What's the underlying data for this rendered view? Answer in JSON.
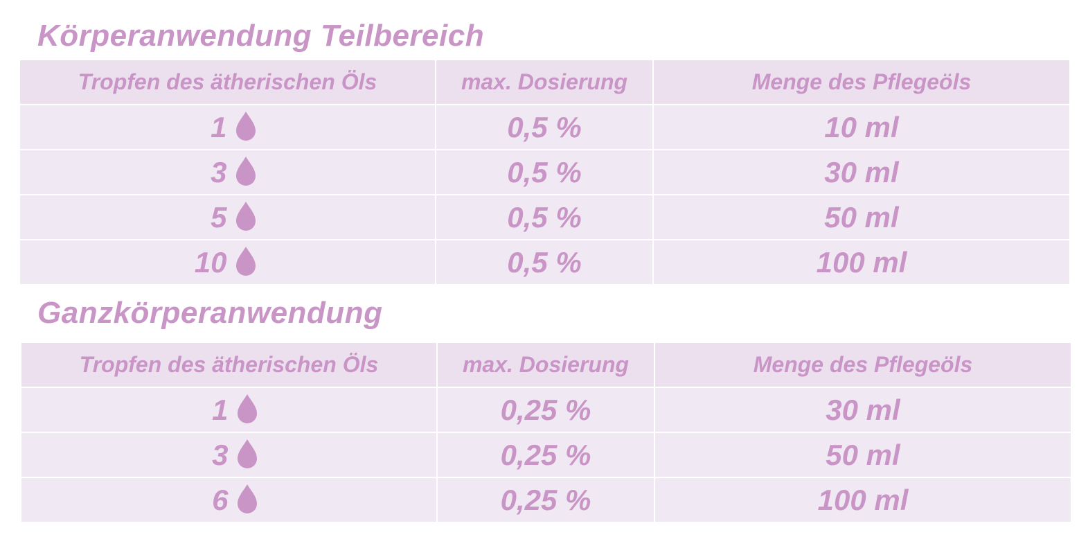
{
  "colors": {
    "accent": "#c995c6",
    "header_bg": "#ecdfee",
    "row_bg": "#f0e8f2"
  },
  "sections": [
    {
      "title": "Körperanwendung Teilbereich",
      "headers": [
        "Tropfen des ätherischen Öls",
        "max. Dosierung",
        "Menge des Pflegeöls"
      ],
      "rows": [
        {
          "drops": "1",
          "icon": "drop-icon",
          "dosage": "0,5 %",
          "amount": "10 ml"
        },
        {
          "drops": "3",
          "icon": "drop-icon",
          "dosage": "0,5 %",
          "amount": "30 ml"
        },
        {
          "drops": "5",
          "icon": "drop-icon",
          "dosage": "0,5 %",
          "amount": "50 ml"
        },
        {
          "drops": "10",
          "icon": "drop-icon",
          "dosage": "0,5 %",
          "amount": "100 ml"
        }
      ]
    },
    {
      "title": "Ganzkörperanwendung",
      "headers": [
        "Tropfen des ätherischen Öls",
        "max. Dosierung",
        "Menge des Pflegeöls"
      ],
      "rows": [
        {
          "drops": "1",
          "icon": "drop-icon",
          "dosage": "0,25 %",
          "amount": "30 ml"
        },
        {
          "drops": "3",
          "icon": "drop-icon",
          "dosage": "0,25 %",
          "amount": "50 ml"
        },
        {
          "drops": "6",
          "icon": "drop-icon",
          "dosage": "0,25 %",
          "amount": "100 ml"
        }
      ]
    }
  ]
}
